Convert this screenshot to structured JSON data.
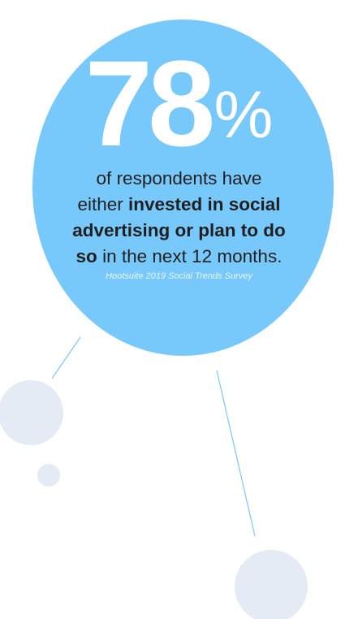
{
  "stat": {
    "number": "78",
    "unit": "%"
  },
  "description": {
    "line1": "of respondents have",
    "line2_plain": "either ",
    "line2_bold": "invested in social",
    "line3_bold": "advertising or plan to do",
    "line4_bold": "so",
    "line4_plain": " in the next 12 months."
  },
  "source": "Hootsuite 2019 Social Trends Survey",
  "colors": {
    "main_circle": "#78c9fb",
    "small_circles": "#e4ebf5",
    "connector_lines": "#78c9fb",
    "stat_text": "#ffffff",
    "body_text": "#1f1f1f"
  }
}
